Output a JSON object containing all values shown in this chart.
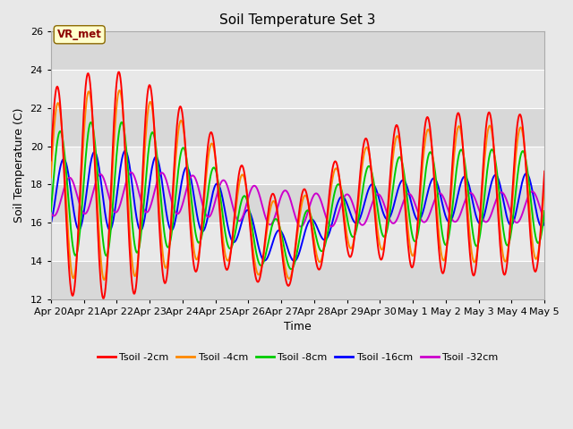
{
  "title": "Soil Temperature Set 3",
  "xlabel": "Time",
  "ylabel": "Soil Temperature (C)",
  "ylim": [
    12,
    26
  ],
  "yticks": [
    12,
    14,
    16,
    18,
    20,
    22,
    24,
    26
  ],
  "xlabels": [
    "Apr 20",
    "Apr 21",
    "Apr 22",
    "Apr 23",
    "Apr 24",
    "Apr 25",
    "Apr 26",
    "Apr 27",
    "Apr 28",
    "Apr 29",
    "Apr 30",
    "May 1",
    "May 2",
    "May 3",
    "May 4",
    "May 5"
  ],
  "annotation": "VR_met",
  "colors": {
    "Tsoil -2cm": "#ff0000",
    "Tsoil -4cm": "#ff8800",
    "Tsoil -8cm": "#00cc00",
    "Tsoil -16cm": "#0000ff",
    "Tsoil -32cm": "#cc00cc"
  },
  "bg_dark": "#d8d8d8",
  "bg_light": "#e8e8e8",
  "linewidth": 1.4,
  "figsize": [
    6.4,
    4.8
  ],
  "dpi": 100
}
